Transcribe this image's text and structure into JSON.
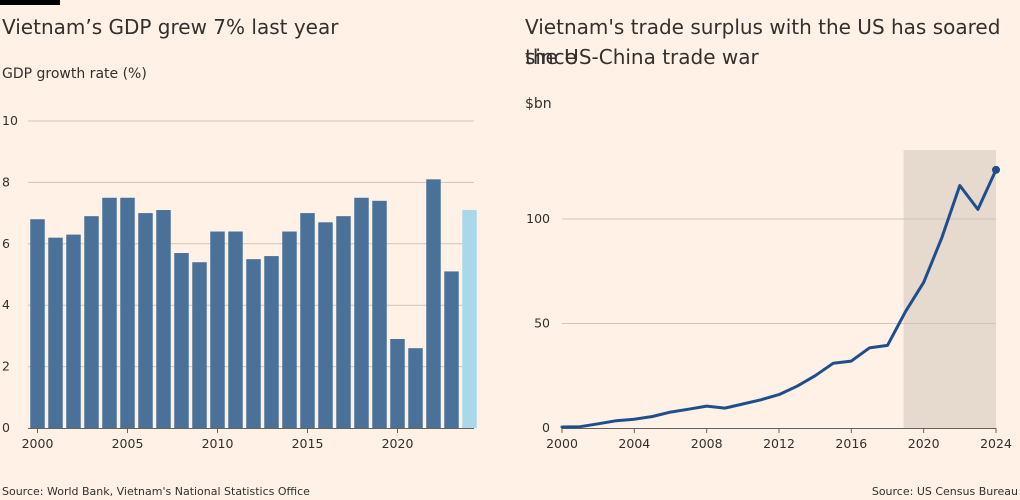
{
  "left": {
    "title": "Vietnam’s GDP grew 7% last year",
    "unit": "GDP growth rate (%)",
    "source": "Source: World Bank, Vietnam's National Statistics Office"
  },
  "right": {
    "title_line1": "Vietnam's trade surplus with the US has soared since",
    "title_line2": "the US-China trade war",
    "unit": "$bn",
    "source": "Source: US Census Bureau"
  },
  "colors": {
    "bar": "#4a7298",
    "bar_estimate": "#a8d8ea",
    "line": "#1f4e8c",
    "grid": "#cfc5bb",
    "shade": "#e6d9ce",
    "axis": "#66605c"
  },
  "chart_data": [
    {
      "type": "bar",
      "title": "Vietnam’s GDP grew 7% last year",
      "ylabel": "GDP growth rate (%)",
      "x": [
        2000,
        2001,
        2002,
        2003,
        2004,
        2005,
        2006,
        2007,
        2008,
        2009,
        2010,
        2011,
        2012,
        2013,
        2014,
        2015,
        2016,
        2017,
        2018,
        2019,
        2020,
        2021,
        2022,
        2023,
        2024
      ],
      "values": [
        6.8,
        6.2,
        6.3,
        6.9,
        7.5,
        7.5,
        7.0,
        7.1,
        5.7,
        5.4,
        6.4,
        6.4,
        5.5,
        5.6,
        6.4,
        7.0,
        6.7,
        6.9,
        7.5,
        7.4,
        2.9,
        2.6,
        8.1,
        5.1,
        7.1
      ],
      "highlight_last": true,
      "yticks": [
        0,
        2,
        4,
        6,
        8,
        10
      ],
      "xticks": [
        2000,
        2005,
        2010,
        2015,
        2020
      ],
      "ylim": [
        0,
        10
      ],
      "grid": true
    },
    {
      "type": "line",
      "title": "Vietnam's trade surplus with the US has soared since the US-China trade war",
      "ylabel": "$bn",
      "x": [
        2000,
        2001,
        2002,
        2003,
        2004,
        2005,
        2006,
        2007,
        2008,
        2009,
        2010,
        2011,
        2012,
        2013,
        2014,
        2015,
        2016,
        2017,
        2018,
        2019,
        2020,
        2021,
        2022,
        2023,
        2024
      ],
      "values": [
        0.5,
        0.6,
        2.0,
        3.5,
        4.2,
        5.5,
        7.6,
        9.0,
        10.5,
        9.5,
        11.5,
        13.5,
        16.0,
        20.0,
        25.0,
        31.0,
        32.0,
        38.3,
        39.5,
        55.8,
        69.7,
        91.0,
        116.0,
        104.6,
        123.5
      ],
      "shaded_range": [
        2019,
        2024
      ],
      "end_marker": true,
      "yticks": [
        0,
        50,
        100
      ],
      "xticks": [
        2000,
        2004,
        2008,
        2012,
        2016,
        2020,
        2024
      ],
      "ylim": [
        0,
        133
      ],
      "grid": true
    }
  ]
}
